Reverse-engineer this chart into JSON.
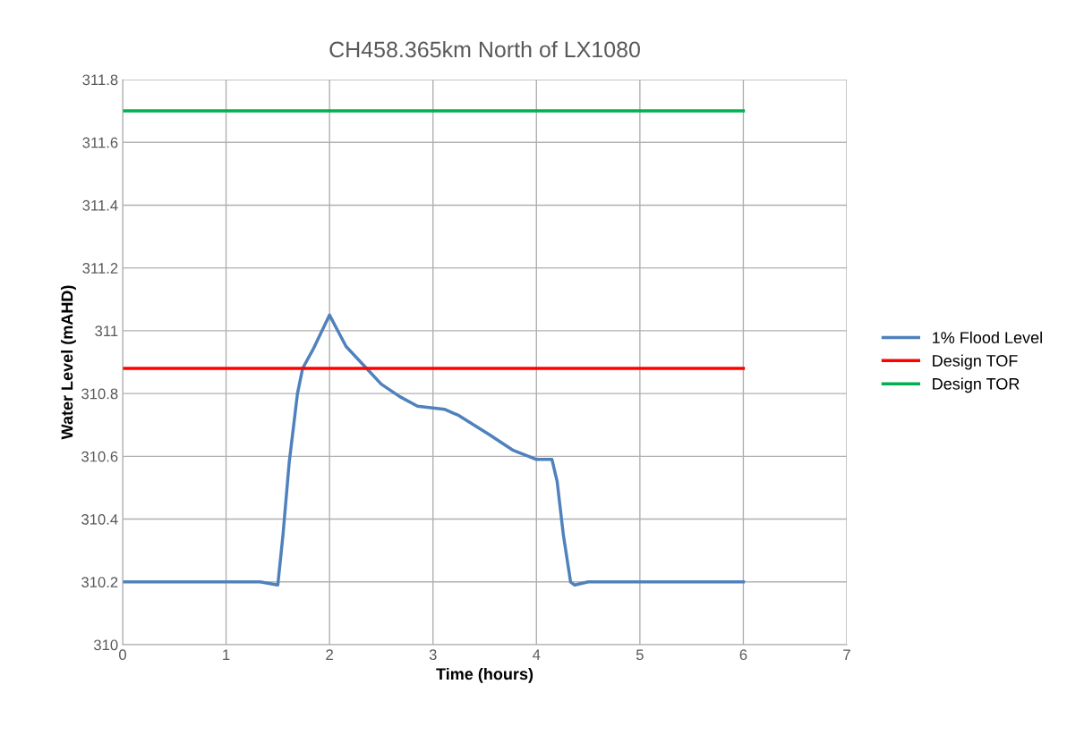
{
  "chart_data": {
    "type": "line",
    "title": "CH458.365km North of LX1080",
    "xlabel": "Time (hours)",
    "ylabel": "Water Level (mAHD)",
    "xlim": [
      0,
      7
    ],
    "xticks": [
      0,
      1,
      2,
      3,
      4,
      5,
      6,
      7
    ],
    "ylim": [
      310,
      311.8
    ],
    "yticks": [
      310,
      310.2,
      310.4,
      310.6,
      310.8,
      311,
      311.2,
      311.4,
      311.6,
      311.8
    ],
    "grid": true,
    "legend": "right",
    "marker": "none",
    "line_style": "solid",
    "series": [
      {
        "name": "1% Flood Level",
        "color": "#4f81bd",
        "x": [
          0,
          1,
          1.33,
          1.5,
          1.55,
          1.61,
          1.69,
          1.74,
          1.84,
          2.0,
          2.16,
          2.33,
          2.5,
          2.68,
          2.85,
          3.11,
          3.25,
          3.54,
          3.77,
          4.0,
          4.15,
          4.2,
          4.26,
          4.33,
          4.37,
          4.5,
          5,
          6
        ],
        "values": [
          310.2,
          310.2,
          310.2,
          310.19,
          310.35,
          310.58,
          310.8,
          310.88,
          310.94,
          311.05,
          310.95,
          310.89,
          310.83,
          310.79,
          310.76,
          310.75,
          310.73,
          310.67,
          310.62,
          310.59,
          310.59,
          310.52,
          310.35,
          310.2,
          310.19,
          310.2,
          310.2,
          310.2
        ]
      },
      {
        "name": "Design TOF",
        "color": "#ff0000",
        "x": [
          0,
          6
        ],
        "values": [
          310.88,
          310.88
        ]
      },
      {
        "name": "Design TOR",
        "color": "#00b050",
        "x": [
          0,
          6
        ],
        "values": [
          311.7,
          311.7
        ]
      }
    ]
  }
}
